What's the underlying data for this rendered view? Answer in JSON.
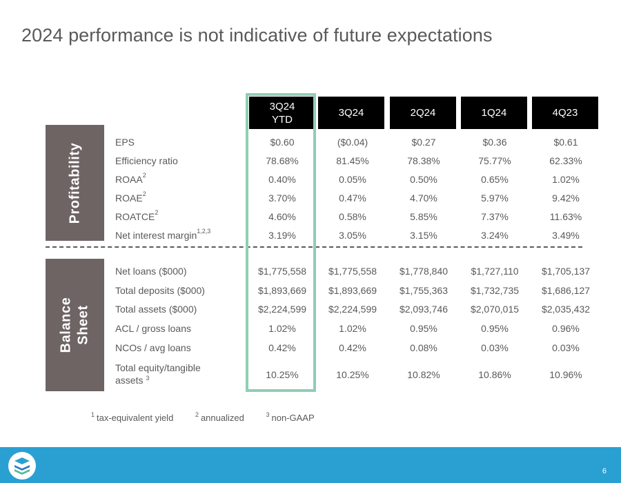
{
  "title": "2024 performance is not indicative of future expectations",
  "columns": [
    "3Q24\nYTD",
    "3Q24",
    "2Q24",
    "1Q24",
    "4Q23"
  ],
  "sections": {
    "profitability": "Profitability",
    "balance_sheet": "Balance\nSheet"
  },
  "profitability_rows": [
    {
      "label": "EPS",
      "sup": "",
      "values": [
        "$0.60",
        "($0.04)",
        "$0.27",
        "$0.36",
        "$0.61"
      ]
    },
    {
      "label": "Efficiency ratio",
      "sup": "",
      "values": [
        "78.68%",
        "81.45%",
        "78.38%",
        "75.77%",
        "62.33%"
      ]
    },
    {
      "label": "ROAA",
      "sup": "2",
      "values": [
        "0.40%",
        "0.05%",
        "0.50%",
        "0.65%",
        "1.02%"
      ]
    },
    {
      "label": "ROAE",
      "sup": "2",
      "values": [
        "3.70%",
        "0.47%",
        "4.70%",
        "5.97%",
        "9.42%"
      ]
    },
    {
      "label": "ROATCE",
      "sup": "2",
      "values": [
        "4.60%",
        "0.58%",
        "5.85%",
        "7.37%",
        "11.63%"
      ]
    },
    {
      "label": "Net interest margin",
      "sup": "1,2,3",
      "values": [
        "3.19%",
        "3.05%",
        "3.15%",
        "3.24%",
        "3.49%"
      ]
    }
  ],
  "balance_rows": [
    {
      "label": "Net loans ($000)",
      "sup": "",
      "values": [
        "$1,775,558",
        "$1,775,558",
        "$1,778,840",
        "$1,727,110",
        "$1,705,137"
      ]
    },
    {
      "label": "Total deposits ($000)",
      "sup": "",
      "values": [
        "$1,893,669",
        "$1,893,669",
        "$1,755,363",
        "$1,732,735",
        "$1,686,127"
      ]
    },
    {
      "label": "Total assets ($000)",
      "sup": "",
      "values": [
        "$2,224,599",
        "$2,224,599",
        "$2,093,746",
        "$2,070,015",
        "$2,035,432"
      ]
    },
    {
      "label": "ACL / gross loans",
      "sup": "",
      "values": [
        "1.02%",
        "1.02%",
        "0.95%",
        "0.95%",
        "0.96%"
      ]
    },
    {
      "label": "NCOs / avg loans",
      "sup": "",
      "values": [
        "0.42%",
        "0.42%",
        "0.08%",
        "0.03%",
        "0.03%"
      ]
    },
    {
      "label": "Total equity/tangible\nassets",
      "sup": "3",
      "values": [
        "10.25%",
        "10.25%",
        "10.82%",
        "10.86%",
        "10.96%"
      ]
    }
  ],
  "footnotes": [
    {
      "num": "1",
      "text": "tax-equivalent yield"
    },
    {
      "num": "2",
      "text": "annualized"
    },
    {
      "num": "3",
      "text": "non-GAAP"
    }
  ],
  "page_number": "6",
  "colors": {
    "highlight": "#8fceb4",
    "section_bg": "#6d6463",
    "footer_bg": "#2aa0d2",
    "header_bg": "#000000",
    "text": "#595959"
  },
  "icons": {
    "logo": "layered-chevrons-logo-icon"
  }
}
